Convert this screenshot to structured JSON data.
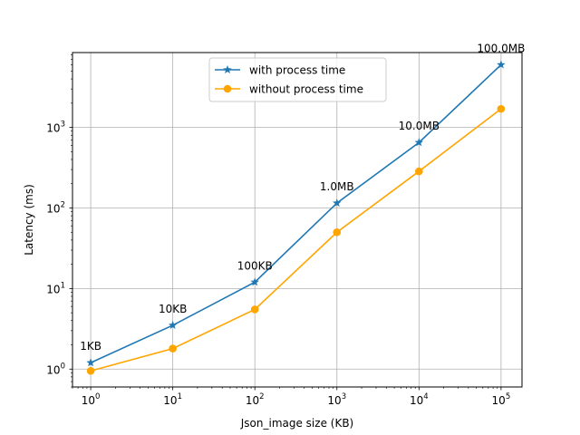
{
  "chart_data": {
    "type": "line",
    "title": "",
    "xlabel": "Json_image size (KB)",
    "ylabel": "Latency (ms)",
    "x_scale": "log",
    "y_scale": "log",
    "xlim": [
      0.6,
      180000
    ],
    "ylim": [
      0.6,
      8500
    ],
    "grid": true,
    "legend_position": "top-center",
    "x_ticks": [
      1,
      10,
      100,
      1000,
      10000,
      100000
    ],
    "x_tick_labels": [
      {
        "base": "10",
        "exp": "0"
      },
      {
        "base": "10",
        "exp": "1"
      },
      {
        "base": "10",
        "exp": "2"
      },
      {
        "base": "10",
        "exp": "3"
      },
      {
        "base": "10",
        "exp": "4"
      },
      {
        "base": "10",
        "exp": "5"
      }
    ],
    "y_ticks": [
      1,
      10,
      100,
      1000
    ],
    "y_tick_labels": [
      {
        "base": "10",
        "exp": "0"
      },
      {
        "base": "10",
        "exp": "1"
      },
      {
        "base": "10",
        "exp": "2"
      },
      {
        "base": "10",
        "exp": "3"
      }
    ],
    "x": [
      1,
      10,
      100,
      1000,
      10000,
      100000
    ],
    "series": [
      {
        "name": "with process time",
        "color": "#1f77b4",
        "marker": "star",
        "values": [
          1.2,
          3.5,
          12,
          115,
          650,
          6000
        ]
      },
      {
        "name": "without process time",
        "color": "#ffa500",
        "marker": "circle",
        "values": [
          0.95,
          1.8,
          5.5,
          50,
          285,
          1700
        ]
      }
    ],
    "annotations": [
      "1KB",
      "10KB",
      "100KB",
      "1.0MB",
      "10.0MB",
      "100.0MB"
    ]
  }
}
